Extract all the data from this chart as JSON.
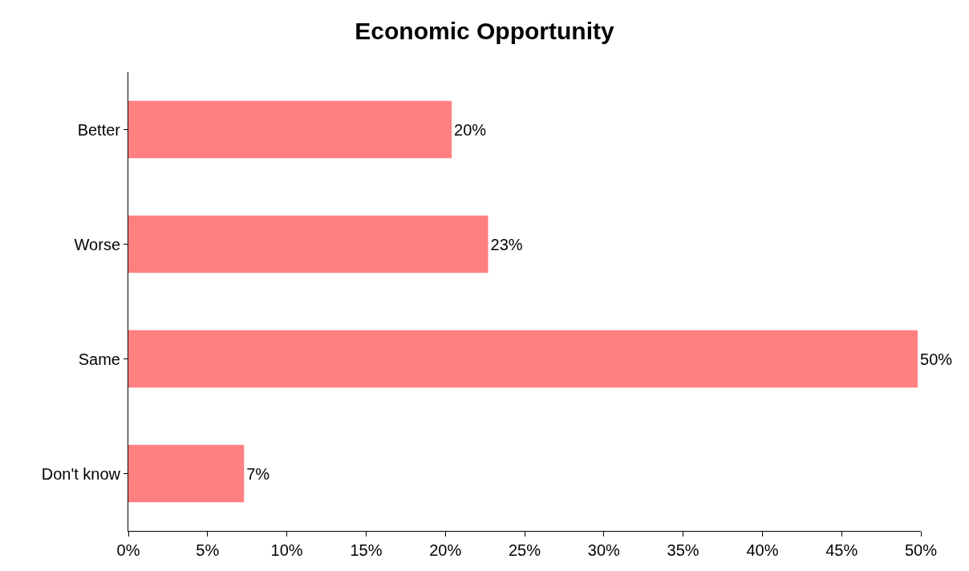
{
  "chart_data": {
    "type": "bar",
    "title": "Economic Opportunity",
    "orientation": "horizontal",
    "categories": [
      "Better",
      "Worse",
      "Same",
      "Don't know"
    ],
    "values": [
      20.4,
      22.7,
      49.8,
      7.3
    ],
    "value_labels": [
      "20%",
      "23%",
      "50%",
      "7%"
    ],
    "color": "#ff8080",
    "xlim": [
      0,
      50
    ],
    "xticks": [
      {
        "value": 0,
        "label": "0%"
      },
      {
        "value": 5,
        "label": "5%"
      },
      {
        "value": 10,
        "label": "10%"
      },
      {
        "value": 15,
        "label": "15%"
      },
      {
        "value": 20,
        "label": "20%"
      },
      {
        "value": 25,
        "label": "25%"
      },
      {
        "value": 30,
        "label": "30%"
      },
      {
        "value": 35,
        "label": "35%"
      },
      {
        "value": 40,
        "label": "40%"
      },
      {
        "value": 45,
        "label": "45%"
      },
      {
        "value": 50,
        "label": "50%"
      }
    ],
    "legend": false
  }
}
